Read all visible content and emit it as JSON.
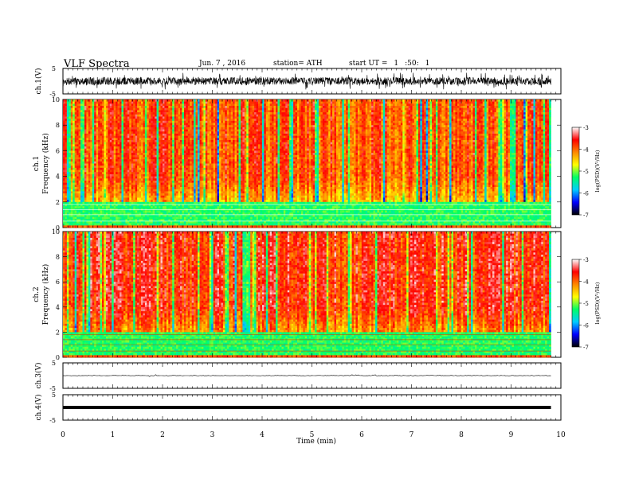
{
  "header": {
    "title": "VLF  Spectra",
    "date": "Jun. 7  , 2016",
    "station": "station= ATH",
    "start_label": "start  UT  =",
    "start_h": "1",
    "start_m": ":50:",
    "start_s": "1"
  },
  "chart_data": [
    {
      "type": "line",
      "panel": "ch1-waveform",
      "ylabel": "ch.1(V)",
      "ylim": [
        -5,
        5
      ],
      "y_ticks": [
        "5",
        "-5"
      ],
      "x_range_min": [
        0,
        9.8
      ],
      "amplitude_V": 1.5
    },
    {
      "type": "heatmap",
      "panel": "ch1-spectrogram",
      "ylabel": "ch.1\nFrequency (kHz)",
      "ylabel_lines": [
        "ch.1",
        "Frequency (kHz)"
      ],
      "ylim": [
        0,
        10
      ],
      "y_ticks": [
        "0",
        "2",
        "4",
        "6",
        "8",
        "10"
      ],
      "colorbar": {
        "label": "log(PSD)(V²/Hz)",
        "range": [
          -7,
          -3
        ],
        "ticks": [
          "-3",
          "-4",
          "-5",
          "-6",
          "-7"
        ],
        "colors": [
          "#000000",
          "#0000ff",
          "#00ccff",
          "#00ff66",
          "#ffff00",
          "#ff8800",
          "#ff0000",
          "#ffffff"
        ]
      }
    },
    {
      "type": "heatmap",
      "panel": "ch2-spectrogram",
      "ylabel": "ch.2\nFrequency (kHz)",
      "ylabel_lines": [
        "ch.2",
        "Frequency (kHz)"
      ],
      "ylim": [
        0,
        10
      ],
      "y_ticks": [
        "0",
        "2",
        "4",
        "6",
        "8",
        "10"
      ],
      "colorbar": {
        "label": "log(PSD)(V²/Hz)",
        "range": [
          -7,
          -3
        ],
        "ticks": [
          "-3",
          "-4",
          "-5",
          "-6",
          "-7"
        ],
        "colors": [
          "#000000",
          "#0000ff",
          "#00ccff",
          "#00ff66",
          "#ffff00",
          "#ff8800",
          "#ff0000",
          "#ffffff"
        ]
      }
    },
    {
      "type": "line",
      "panel": "ch3-waveform",
      "ylabel": "ch.3(V)",
      "ylim": [
        -5,
        5
      ],
      "y_ticks": [
        "5",
        "-5"
      ],
      "level_V": 0
    },
    {
      "type": "line",
      "panel": "ch4-waveform",
      "ylabel": "ch.4(V)",
      "ylim": [
        -5,
        5
      ],
      "y_ticks": [
        "5",
        "-5"
      ],
      "level_V": 0
    }
  ],
  "x_axis": {
    "label": "Time  (min)",
    "ticks": [
      "0",
      "1",
      "2",
      "3",
      "4",
      "5",
      "6",
      "7",
      "8",
      "9",
      "10"
    ],
    "range": [
      0,
      10
    ]
  }
}
